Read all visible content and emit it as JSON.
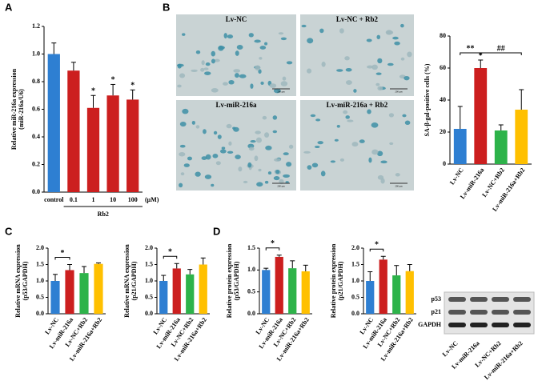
{
  "panel_labels": [
    "A",
    "B",
    "C",
    "D"
  ],
  "micrographs": {
    "labels": [
      "Lv-NC",
      "Lv-NC + Rb2",
      "Lv-miR-216a",
      "Lv-miR-216a + Rb2"
    ],
    "scale_bar": "200 μm"
  },
  "blot": {
    "rows": [
      "p53",
      "p21",
      "GAPDH"
    ],
    "lanes": [
      "Lv-NC",
      "Lv-miR-216a",
      "Lv-NC+Rb2",
      "Lv-miR-216a+Rb2"
    ]
  },
  "chart_data": [
    {
      "type": "bar",
      "ylabel": [
        "Relative miR-216a expression",
        "(miR-216a/U6)"
      ],
      "categories": [
        "control",
        "0.1",
        "1",
        "10",
        "100"
      ],
      "group_label": "Rb2",
      "unit": "(μM)",
      "values": [
        1.0,
        0.88,
        0.61,
        0.7,
        0.67
      ],
      "errors": [
        0.08,
        0.06,
        0.09,
        0.08,
        0.07
      ],
      "colors": [
        "#2e7fd2",
        "#cc1f1f",
        "#cc1f1f",
        "#cc1f1f",
        "#cc1f1f"
      ],
      "ylim": [
        0,
        1.2
      ],
      "yticks": [
        {
          "value": 0,
          "label": "0.0"
        },
        0.2,
        0.4,
        0.6,
        0.8,
        {
          "value": 1,
          "label": "1.0"
        },
        1.2
      ],
      "annotations": [
        {
          "text": "*",
          "at": 2
        },
        {
          "text": "*",
          "at": 3
        },
        {
          "text": "*",
          "at": 4
        }
      ]
    },
    {
      "type": "bar",
      "ylabel": [
        "SA-β-gal-positive cells (%)"
      ],
      "categories": [
        "Lv-NC",
        "Lv-miR-216a",
        "Lv-NC+Rb2",
        "Lv-miR-216a+Rb2"
      ],
      "values": [
        22,
        60,
        21,
        34
      ],
      "errors": [
        14,
        5,
        3.5,
        12.5
      ],
      "colors": [
        "#2e7fd2",
        "#cc1f1f",
        "#2db34a",
        "#ffc000"
      ],
      "ylim": [
        0,
        80
      ],
      "yticks": [
        0,
        20,
        40,
        60,
        80
      ],
      "annotations": [
        {
          "text": "*",
          "at": 1
        }
      ],
      "brackets": [
        {
          "text": "**",
          "from": 0,
          "to": 1
        },
        {
          "text": "##",
          "from": 1,
          "to": 3
        }
      ]
    },
    {
      "type": "bar",
      "ylabel": [
        "Relative mRNA expression",
        "(p53/GAPDH)"
      ],
      "categories": [
        "Lv-NC",
        "Lv-miR-216a",
        "Lv-NC+Rb2",
        "Lv-miR-216a+Rb2"
      ],
      "values": [
        1.0,
        1.33,
        1.24,
        1.52
      ],
      "errors": [
        0.2,
        0.17,
        0.2,
        0.03
      ],
      "colors": [
        "#2e7fd2",
        "#cc1f1f",
        "#2db34a",
        "#ffc000"
      ],
      "ylim": [
        0,
        2
      ],
      "yticks": [
        {
          "value": 0,
          "label": "0.0"
        },
        0.5,
        {
          "value": 1,
          "label": "1.0"
        },
        1.5,
        {
          "value": 2,
          "label": "2.0"
        }
      ],
      "brackets": [
        {
          "text": "*",
          "from": 0,
          "to": 1
        }
      ]
    },
    {
      "type": "bar",
      "ylabel": [
        "Relative mRNA expression",
        "(p21/GAPDH)"
      ],
      "categories": [
        "Lv-NC",
        "Lv-miR-216a",
        "Lv-NC+Rb2",
        "Lv-miR-216a+Rb2"
      ],
      "values": [
        1.0,
        1.38,
        1.2,
        1.5
      ],
      "errors": [
        0.17,
        0.15,
        0.15,
        0.2
      ],
      "colors": [
        "#2e7fd2",
        "#cc1f1f",
        "#2db34a",
        "#ffc000"
      ],
      "ylim": [
        0,
        2
      ],
      "yticks": [
        {
          "value": 0,
          "label": "0.0"
        },
        0.5,
        {
          "value": 1,
          "label": "1.0"
        },
        1.5,
        {
          "value": 2,
          "label": "2.0"
        }
      ],
      "brackets": [
        {
          "text": "*",
          "from": 0,
          "to": 1
        }
      ]
    },
    {
      "type": "bar",
      "ylabel": [
        "Relative protein expression",
        "(p53/GAPDH)"
      ],
      "categories": [
        "Lv-NC",
        "Lv-miR-216a",
        "Lv-NC+Rb2",
        "Lv-miR-216a+Rb2"
      ],
      "values": [
        1.0,
        1.3,
        1.04,
        0.97
      ],
      "errors": [
        0.04,
        0.04,
        0.17,
        0.14
      ],
      "colors": [
        "#2e7fd2",
        "#cc1f1f",
        "#2db34a",
        "#ffc000"
      ],
      "ylim": [
        0,
        1.5
      ],
      "yticks": [
        {
          "value": 0,
          "label": "0.0"
        },
        0.5,
        {
          "value": 1,
          "label": "1.0"
        },
        1.5
      ],
      "brackets": [
        {
          "text": "*",
          "from": 0,
          "to": 1
        }
      ]
    },
    {
      "type": "bar",
      "ylabel": [
        "Relative protein expression",
        "(p21/GAPDH)"
      ],
      "categories": [
        "Lv-NC",
        "Lv-miR-216a",
        "Lv-NC+Rb2",
        "Lv-miR-216a+Rb2"
      ],
      "values": [
        1.0,
        1.65,
        1.17,
        1.3
      ],
      "errors": [
        0.28,
        0.1,
        0.3,
        0.2
      ],
      "colors": [
        "#2e7fd2",
        "#cc1f1f",
        "#2db34a",
        "#ffc000"
      ],
      "ylim": [
        0,
        2
      ],
      "yticks": [
        {
          "value": 0,
          "label": "0.0"
        },
        0.5,
        {
          "value": 1,
          "label": "1.0"
        },
        1.5,
        {
          "value": 2,
          "label": "2.0"
        }
      ],
      "brackets": [
        {
          "text": "*",
          "from": 0,
          "to": 1
        }
      ]
    }
  ]
}
